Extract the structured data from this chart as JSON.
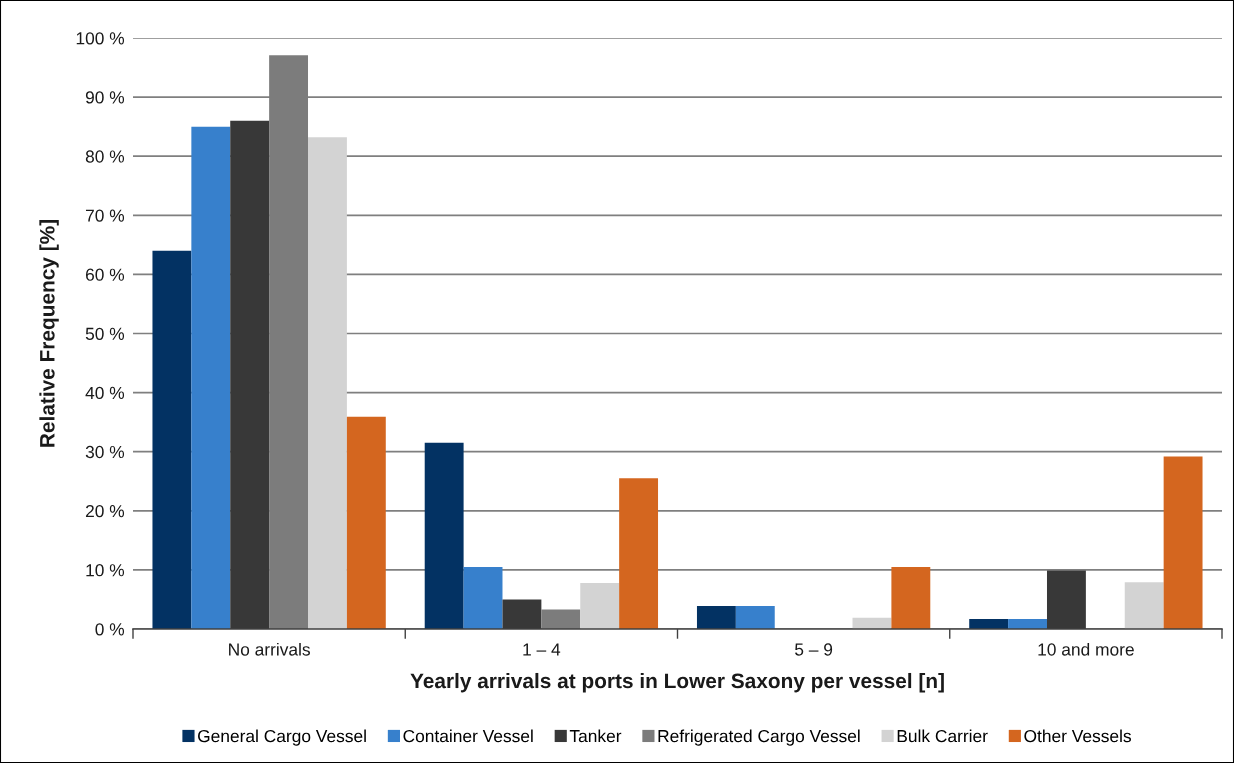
{
  "chart_data": {
    "type": "bar",
    "xlabel": "Yearly arrivals at ports in Lower Saxony per vessel [n]",
    "ylabel": "Relative Frequency [%]",
    "categories": [
      "No arrivals",
      "1 – 4",
      "5 – 9",
      "10 and more"
    ],
    "series": [
      {
        "name": "General Cargo Vessel",
        "color": "#033263",
        "values": [
          64,
          31.5,
          3.9,
          1.7
        ]
      },
      {
        "name": "Container Vessel",
        "color": "#3780cc",
        "values": [
          85,
          10.5,
          3.9,
          1.7
        ]
      },
      {
        "name": "Tanker",
        "color": "#383838",
        "values": [
          86,
          5,
          0,
          9.9
        ]
      },
      {
        "name": "Refrigerated Cargo Vessel",
        "color": "#7c7c7c",
        "values": [
          97.1,
          3.3,
          0,
          0
        ]
      },
      {
        "name": "Bulk Carrier",
        "color": "#d3d3d3",
        "values": [
          83.2,
          7.8,
          1.9,
          7.9
        ]
      },
      {
        "name": "Other Vessels",
        "color": "#d4661f",
        "values": [
          35.9,
          25.5,
          10.5,
          29.2
        ]
      }
    ],
    "ylim": [
      0,
      100
    ],
    "yticks": [
      {
        "value": 0,
        "label": "0 %"
      },
      {
        "value": 10,
        "label": "10 %"
      },
      {
        "value": 20,
        "label": "20 %"
      },
      {
        "value": 30,
        "label": "30 %"
      },
      {
        "value": 40,
        "label": "40 %"
      },
      {
        "value": 50,
        "label": "50 %"
      },
      {
        "value": 60,
        "label": "60 %"
      },
      {
        "value": 70,
        "label": "70 %"
      },
      {
        "value": 80,
        "label": "80 %"
      },
      {
        "value": 90,
        "label": "90 %"
      },
      {
        "value": 100,
        "label": "100 %"
      }
    ],
    "grid": "y",
    "legend": "bottom"
  }
}
